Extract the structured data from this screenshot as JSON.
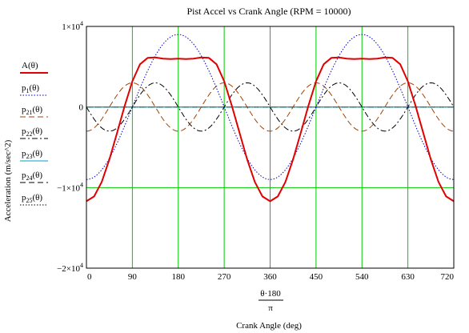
{
  "chart_data": {
    "type": "line",
    "title": "Pist Accel vs Crank Angle (RPM = 10000)",
    "ylabel": "Acceleration (m/sec^2)",
    "xlabel_expression": {
      "numerator": "θ·180",
      "denominator": "π"
    },
    "xlabel": "Crank Angle (deg)",
    "xlim": [
      0,
      720
    ],
    "ylim": [
      -20000,
      10000
    ],
    "x_ticks": [
      0,
      90,
      180,
      270,
      360,
      450,
      540,
      630,
      720
    ],
    "x_tick_labels": [
      "0",
      "90",
      "180",
      "270",
      "360",
      "450",
      "540",
      "630",
      "720"
    ],
    "y_ticks": [
      {
        "value": 10000,
        "mantissa": "1",
        "exp": "4"
      },
      {
        "value": 0,
        "mantissa": "0",
        "exp": ""
      },
      {
        "value": -10000,
        "mantissa": "−1",
        "exp": "4"
      },
      {
        "value": -20000,
        "mantissa": "−2",
        "exp": "4"
      }
    ],
    "grid": true,
    "grid_color": "#00c800",
    "legend_placement": "left",
    "series": [
      {
        "name": "A(θ)",
        "color": "#e00000",
        "style": "solid",
        "width": 2,
        "x": [
          0,
          15,
          30,
          45,
          60,
          75,
          90,
          105,
          120,
          135,
          150,
          165,
          180,
          195,
          210,
          225,
          240,
          255,
          270,
          285,
          300,
          315,
          330,
          345,
          360,
          375,
          390,
          405,
          420,
          435,
          450,
          465,
          480,
          495,
          510,
          525,
          540,
          555,
          570,
          585,
          600,
          615,
          630,
          645,
          660,
          675,
          690,
          705,
          720
        ],
        "values": [
          -11700,
          -11100,
          -9300,
          -6500,
          -3200,
          150,
          3200,
          5300,
          6100,
          6150,
          6000,
          5950,
          6000,
          5950,
          6000,
          6150,
          6100,
          5300,
          3200,
          150,
          -3200,
          -6500,
          -9300,
          -11100,
          -11700,
          -11100,
          -9300,
          -6500,
          -3200,
          150,
          3200,
          5300,
          6100,
          6150,
          6000,
          5950,
          6000,
          5950,
          6000,
          6150,
          6100,
          5300,
          3200,
          150,
          -3200,
          -6500,
          -9300,
          -11100,
          -11700
        ]
      },
      {
        "name": "p1(θ)",
        "color": "#0000c8",
        "style": "dotted",
        "function": "-9000*cos(x)"
      },
      {
        "name": "p21(θ)",
        "color": "#a04000",
        "style": "dashed",
        "function": "-3000*cos(2x)"
      },
      {
        "name": "p22(θ)",
        "color": "#000000",
        "style": "dashdot",
        "function": "-3000*sin(2x)"
      },
      {
        "name": "p23(θ)",
        "color": "#00a0c8",
        "style": "solid",
        "function": "0"
      },
      {
        "name": "p24(θ)",
        "color": "#000000",
        "style": "dashed",
        "function": "0"
      },
      {
        "name": "p25(θ)",
        "color": "#000000",
        "style": "dotted",
        "function": "0"
      }
    ]
  }
}
